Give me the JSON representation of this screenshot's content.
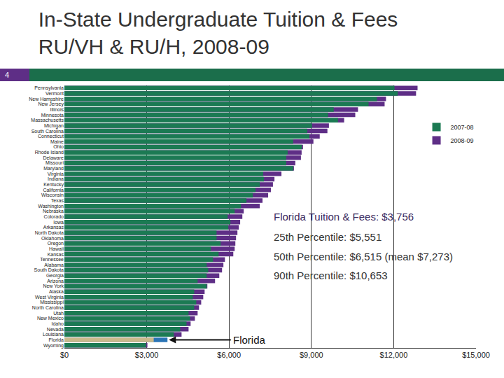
{
  "chart_data": {
    "type": "bar",
    "orientation": "horizontal",
    "title": "In-State Undergraduate Tuition & Fees\nRU/VH & RU/H, 2008-09",
    "page_number": "4",
    "categories": [
      "Pennsylvania",
      "Vermont",
      "New Hampshire",
      "New Jersey",
      "Illinois",
      "Minnesota",
      "Massachusetts",
      "Michigan",
      "South Carolina",
      "Connecticut",
      "Maine",
      "Ohio",
      "Rhode Island",
      "Delaware",
      "Missouri",
      "Maryland",
      "Virginia",
      "Indiana",
      "Kentucky",
      "California",
      "Wisconsin",
      "Texas",
      "Washington",
      "Nebraska",
      "Colorado",
      "Iowa",
      "Arkansas",
      "North Dakota",
      "Oklahoma",
      "Oregon",
      "Hawaii",
      "Kansas",
      "Tennessee",
      "Alabama",
      "South Dakota",
      "Georgia",
      "Arizona",
      "New York",
      "Alaska",
      "West Virginia",
      "Mississippi",
      "North Carolina",
      "Utah",
      "New Mexico",
      "Idaho",
      "Nevada",
      "Louisiana",
      "Florida",
      "Wyoming"
    ],
    "series": [
      {
        "name": "2007-08",
        "color": "#1b7a53",
        "colors": [
          "#1b7a53",
          "#1b7a53",
          "#1b7a53",
          "#1b7a53",
          "#1b7a53",
          "#1b7a53",
          "#1b7a53",
          "#1b7a53",
          "#1b7a53",
          "#1b7a53",
          "#1b7a53",
          "#1b7a53",
          "#1b7a53",
          "#1b7a53",
          "#1b7a53",
          "#1b7a53",
          "#1b7a53",
          "#1b7a53",
          "#1b7a53",
          "#1b7a53",
          "#1b7a53",
          "#1b7a53",
          "#1b7a53",
          "#1b7a53",
          "#1b7a53",
          "#1b7a53",
          "#1b7a53",
          "#1b7a53",
          "#1b7a53",
          "#1b7a53",
          "#1b7a53",
          "#1b7a53",
          "#1b7a53",
          "#1b7a53",
          "#1b7a53",
          "#1b7a53",
          "#1b7a53",
          "#1b7a53",
          "#1b7a53",
          "#1b7a53",
          "#1b7a53",
          "#1b7a53",
          "#1b7a53",
          "#1b7a53",
          "#1b7a53",
          "#1b7a53",
          "#1b7a53",
          "#c9b98b",
          "#1b7a53"
        ],
        "values": [
          12030,
          12150,
          11390,
          11085,
          9815,
          9610,
          9970,
          9025,
          8850,
          8925,
          8340,
          8650,
          8135,
          8085,
          8085,
          8340,
          7245,
          7270,
          7120,
          6965,
          6865,
          6635,
          6435,
          6205,
          5950,
          6050,
          5975,
          5545,
          5545,
          5695,
          5340,
          5620,
          5415,
          5185,
          5240,
          5185,
          4855,
          5185,
          4730,
          4680,
          4805,
          4730,
          4525,
          4575,
          4450,
          4220,
          3990,
          3255,
          2975
        ]
      },
      {
        "name": "2008-09",
        "color": "#5e2e86",
        "colors": [
          "#5e2e86",
          "#5e2e86",
          "#5e2e86",
          "#5e2e86",
          "#5e2e86",
          "#5e2e86",
          "#5e2e86",
          "#5e2e86",
          "#5e2e86",
          "#5e2e86",
          "#5e2e86",
          "#5e2e86",
          "#5e2e86",
          "#5e2e86",
          "#5e2e86",
          "#5e2e86",
          "#5e2e86",
          "#5e2e86",
          "#5e2e86",
          "#5e2e86",
          "#5e2e86",
          "#5e2e86",
          "#5e2e86",
          "#5e2e86",
          "#5e2e86",
          "#5e2e86",
          "#5e2e86",
          "#5e2e86",
          "#5e2e86",
          "#5e2e86",
          "#5e2e86",
          "#5e2e86",
          "#5e2e86",
          "#5e2e86",
          "#5e2e86",
          "#5e2e86",
          "#5e2e86",
          "#5e2e86",
          "#5e2e86",
          "#5e2e86",
          "#5e2e86",
          "#5e2e86",
          "#5e2e86",
          "#5e2e86",
          "#5e2e86",
          "#5e2e86",
          "#5e2e86",
          "#2a74b5",
          "#5e2e86"
        ],
        "values": [
          12870,
          12815,
          11720,
          11670,
          10700,
          10600,
          10195,
          9640,
          9585,
          9305,
          9075,
          8695,
          8645,
          8620,
          8415,
          8365,
          7910,
          7655,
          7600,
          7525,
          7425,
          7220,
          7120,
          6535,
          6485,
          6405,
          6355,
          6305,
          6255,
          6230,
          6205,
          6155,
          5850,
          5795,
          5745,
          5645,
          5490,
          5210,
          5110,
          5060,
          4985,
          4905,
          4855,
          4755,
          4600,
          4525,
          4270,
          3756,
          3025
        ]
      }
    ],
    "xlim": [
      0,
      15000
    ],
    "xticks": [
      {
        "value": 0,
        "label": "$0"
      },
      {
        "value": 3000,
        "label": "$3,000"
      },
      {
        "value": 6000,
        "label": "$6,000"
      },
      {
        "value": 9000,
        "label": "$9,000"
      },
      {
        "value": 12000,
        "label": "$12,000"
      },
      {
        "value": 15000,
        "label": "$15,000"
      }
    ],
    "grid": true,
    "legend": "right",
    "annotations": [
      {
        "text": "Florida Tuition & Fees: $3,756"
      },
      {
        "text": "25th Percentile: $5,551"
      },
      {
        "text": "50th Percentile: $6,515 (mean $7,273)"
      },
      {
        "text": "90th Percentile: $10,653"
      }
    ],
    "arrow_annotation": {
      "text": "Florida",
      "category": "Florida"
    }
  }
}
